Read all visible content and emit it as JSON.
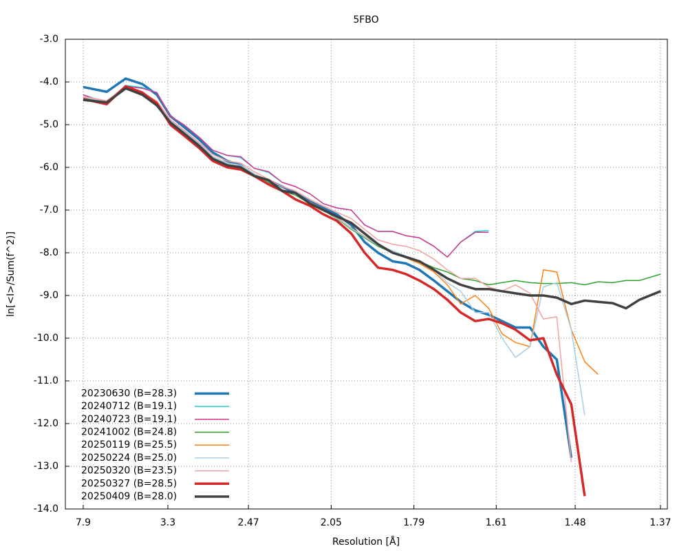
{
  "chart_data": {
    "type": "line",
    "title": "5FBO",
    "xlabel": "Resolution [Å]",
    "ylabel": "ln[<I>/Sum(f^2)]",
    "x": [
      0.016,
      0.037,
      0.054,
      0.069,
      0.082,
      0.094,
      0.106,
      0.12,
      0.132,
      0.145,
      0.157,
      0.169,
      0.182,
      0.194,
      0.206,
      0.219,
      0.231,
      0.243,
      0.256,
      0.268,
      0.28,
      0.293,
      0.305,
      0.317,
      0.33,
      0.342,
      0.354,
      0.367,
      0.379,
      0.391,
      0.403,
      0.416,
      0.428,
      0.44,
      0.453,
      0.465,
      0.477,
      0.49,
      0.502,
      0.514,
      0.533
    ],
    "xlim": [
      0,
      0.539
    ],
    "xticks": [
      {
        "value": 0.016,
        "label": "7.9"
      },
      {
        "value": 0.0918,
        "label": "3.3"
      },
      {
        "value": 0.1639,
        "label": "2.47"
      },
      {
        "value": 0.238,
        "label": "2.05"
      },
      {
        "value": 0.3121,
        "label": "1.79"
      },
      {
        "value": 0.3858,
        "label": "1.61"
      },
      {
        "value": 0.4565,
        "label": "1.48"
      },
      {
        "value": 0.5328,
        "label": "1.37"
      }
    ],
    "ylim": [
      -14,
      -3
    ],
    "yticks": [
      {
        "value": -3,
        "label": "-3.0"
      },
      {
        "value": -4,
        "label": "-4.0"
      },
      {
        "value": -5,
        "label": "-5.0"
      },
      {
        "value": -6,
        "label": "-6.0"
      },
      {
        "value": -7,
        "label": "-7.0"
      },
      {
        "value": -8,
        "label": "-8.0"
      },
      {
        "value": -9,
        "label": "-9.0"
      },
      {
        "value": -10,
        "label": "-10.0"
      },
      {
        "value": -11,
        "label": "-11.0"
      },
      {
        "value": -12,
        "label": "-12.0"
      },
      {
        "value": -13,
        "label": "-13.0"
      },
      {
        "value": -14,
        "label": "-14.0"
      }
    ],
    "grid": true,
    "legend": "lower left",
    "series": [
      {
        "name": "20230630 (B=28.3)",
        "color": "#1f77b4",
        "line_width": 3.5,
        "values": [
          -4.12,
          -4.23,
          -3.92,
          -4.05,
          -4.3,
          -4.8,
          -5.05,
          -5.35,
          -5.65,
          -5.85,
          -5.95,
          -6.2,
          -6.3,
          -6.45,
          -6.6,
          -6.8,
          -6.95,
          -7.1,
          -7.35,
          -7.75,
          -8.0,
          -8.2,
          -8.25,
          -8.4,
          -8.65,
          -8.9,
          -9.15,
          -9.35,
          -9.45,
          -9.6,
          -9.75,
          -9.75,
          -10.2,
          -10.5,
          -12.8,
          null,
          null,
          null,
          null,
          null,
          null
        ]
      },
      {
        "name": "20240712 (B=19.1)",
        "color": "#17d4d4",
        "line_width": 1.5,
        "values": [
          -4.3,
          -4.48,
          -4.08,
          -4.13,
          -4.25,
          -4.8,
          -5.0,
          -5.3,
          -5.6,
          -5.72,
          -5.77,
          -6.02,
          -6.12,
          -6.35,
          -6.45,
          -6.62,
          -6.85,
          -6.95,
          -7.0,
          -7.35,
          -7.5,
          -7.5,
          -7.6,
          -7.65,
          -7.85,
          -8.1,
          -7.75,
          -7.5,
          -7.48,
          null,
          null,
          null,
          null,
          null,
          null,
          null,
          null,
          null,
          null,
          null,
          null
        ]
      },
      {
        "name": "20240723 (B=19.1)",
        "color": "#d6358a",
        "line_width": 1.5,
        "values": [
          -4.3,
          -4.5,
          -4.1,
          -4.15,
          -4.25,
          -4.8,
          -5.0,
          -5.3,
          -5.6,
          -5.72,
          -5.75,
          -6.02,
          -6.1,
          -6.35,
          -6.45,
          -6.62,
          -6.85,
          -6.95,
          -7.0,
          -7.35,
          -7.5,
          -7.5,
          -7.6,
          -7.65,
          -7.85,
          -8.1,
          -7.75,
          -7.52,
          -7.52,
          null,
          null,
          null,
          null,
          null,
          null,
          null,
          null,
          null,
          null,
          null,
          null
        ]
      },
      {
        "name": "20241002 (B=24.8)",
        "color": "#2ca02c",
        "line_width": 1.5,
        "values": [
          -4.38,
          -4.45,
          -4.15,
          -4.3,
          -4.5,
          -4.9,
          -5.15,
          -5.45,
          -5.75,
          -5.9,
          -5.95,
          -6.15,
          -6.35,
          -6.55,
          -6.65,
          -6.85,
          -7.0,
          -7.2,
          -7.45,
          -7.65,
          -7.85,
          -8.0,
          -8.1,
          -8.2,
          -8.35,
          -8.45,
          -8.6,
          -8.65,
          -8.75,
          -8.7,
          -8.65,
          -8.7,
          -8.72,
          -8.72,
          -8.7,
          -8.75,
          -8.68,
          -8.7,
          -8.65,
          -8.65,
          -8.5
        ]
      },
      {
        "name": "20250119 (B=25.5)",
        "color": "#ff7f0e",
        "line_width": 1.5,
        "values": [
          -4.35,
          -4.45,
          -4.12,
          -4.28,
          -4.48,
          -4.9,
          -5.15,
          -5.45,
          -5.75,
          -5.9,
          -5.95,
          -6.15,
          -6.32,
          -6.52,
          -6.62,
          -6.82,
          -6.98,
          -7.18,
          -7.42,
          -7.62,
          -7.82,
          -7.98,
          -8.12,
          -8.25,
          -8.45,
          -8.75,
          -9.2,
          -9.0,
          -9.3,
          -9.9,
          -10.1,
          -10.2,
          -8.4,
          -8.45,
          -9.8,
          -10.55,
          -10.85,
          null,
          null,
          null,
          null
        ]
      },
      {
        "name": "20250224 (B=25.0)",
        "color": "#a6cee3",
        "line_width": 1.5,
        "values": [
          -4.36,
          -4.46,
          -4.13,
          -4.29,
          -4.49,
          -4.9,
          -5.15,
          -5.45,
          -5.75,
          -5.9,
          -5.95,
          -6.15,
          -6.33,
          -6.53,
          -6.63,
          -6.83,
          -6.99,
          -7.19,
          -7.43,
          -7.63,
          -7.83,
          -7.95,
          -8.08,
          -8.2,
          -8.4,
          -8.7,
          -8.9,
          -9.4,
          -9.4,
          -10.0,
          -10.45,
          -10.2,
          -8.8,
          -8.7,
          -9.8,
          -11.8,
          null,
          null,
          null,
          null,
          null
        ]
      },
      {
        "name": "20250320 (B=23.5)",
        "color": "#f4a0a0",
        "line_width": 1.5,
        "values": [
          -4.34,
          -4.44,
          -4.1,
          -4.25,
          -4.45,
          -4.88,
          -5.12,
          -5.42,
          -5.7,
          -5.85,
          -5.9,
          -6.1,
          -6.28,
          -6.45,
          -6.55,
          -6.75,
          -6.9,
          -7.05,
          -7.2,
          -7.45,
          -7.7,
          -7.8,
          -7.85,
          -7.95,
          -8.15,
          -8.4,
          -8.6,
          -8.6,
          -8.8,
          -8.9,
          -8.75,
          -8.95,
          -9.55,
          -9.5,
          -12.9,
          null,
          null,
          null,
          null,
          null,
          null
        ]
      },
      {
        "name": "20250327 (B=28.5)",
        "color": "#d62728",
        "line_width": 3.5,
        "values": [
          -4.4,
          -4.52,
          -4.1,
          -4.25,
          -4.5,
          -5.0,
          -5.25,
          -5.55,
          -5.85,
          -6.0,
          -6.05,
          -6.2,
          -6.4,
          -6.55,
          -6.75,
          -6.9,
          -7.1,
          -7.25,
          -7.55,
          -8.0,
          -8.35,
          -8.4,
          -8.5,
          -8.65,
          -8.85,
          -9.1,
          -9.4,
          -9.6,
          -9.55,
          -9.65,
          -9.8,
          -10.05,
          -10.0,
          -10.85,
          -11.55,
          -13.7,
          null,
          null,
          null,
          null,
          null
        ]
      },
      {
        "name": "20250409 (B=28.0)",
        "color": "#404040",
        "line_width": 3.5,
        "values": [
          -4.42,
          -4.48,
          -4.15,
          -4.3,
          -4.55,
          -4.95,
          -5.2,
          -5.5,
          -5.8,
          -5.95,
          -6.0,
          -6.2,
          -6.3,
          -6.55,
          -6.6,
          -6.85,
          -7.0,
          -7.15,
          -7.3,
          -7.55,
          -7.8,
          -8.0,
          -8.1,
          -8.2,
          -8.4,
          -8.6,
          -8.75,
          -8.85,
          -8.85,
          -8.9,
          -8.95,
          -9.0,
          -9.0,
          -9.05,
          -9.2,
          -9.12,
          -9.15,
          -9.18,
          -9.3,
          -9.1,
          -8.9
        ]
      }
    ]
  }
}
